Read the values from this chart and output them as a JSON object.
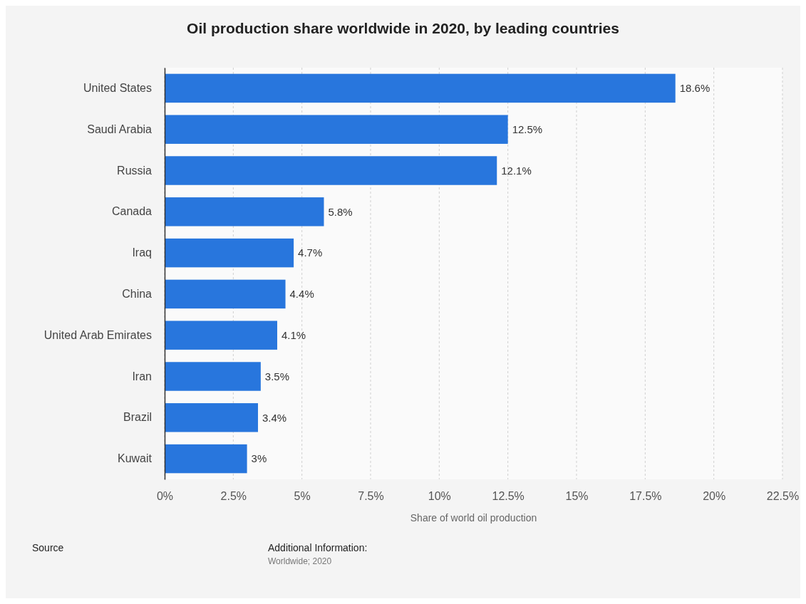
{
  "chart_data": {
    "type": "bar",
    "orientation": "horizontal",
    "title": "Oil production share worldwide in 2020, by leading countries",
    "categories": [
      "United States",
      "Saudi Arabia",
      "Russia",
      "Canada",
      "Iraq",
      "China",
      "United Arab Emirates",
      "Iran",
      "Brazil",
      "Kuwait"
    ],
    "values": [
      18.6,
      12.5,
      12.1,
      5.8,
      4.7,
      4.4,
      4.1,
      3.5,
      3.4,
      3
    ],
    "value_labels": [
      "18.6%",
      "12.5%",
      "12.1%",
      "5.8%",
      "4.7%",
      "4.4%",
      "4.1%",
      "3.5%",
      "3.4%",
      "3%"
    ],
    "color": "#2876dd",
    "xlabel": "Share of world oil production",
    "xlim": [
      0,
      22.5
    ],
    "xticks": [
      {
        "value": 0,
        "label": "0%"
      },
      {
        "value": 2.5,
        "label": "2.5%"
      },
      {
        "value": 5,
        "label": "5%"
      },
      {
        "value": 7.5,
        "label": "7.5%"
      },
      {
        "value": 10,
        "label": "10%"
      },
      {
        "value": 12.5,
        "label": "12.5%"
      },
      {
        "value": 15,
        "label": "15%"
      },
      {
        "value": 17.5,
        "label": "17.5%"
      },
      {
        "value": 20,
        "label": "20%"
      },
      {
        "value": 22.5,
        "label": "22.5%"
      }
    ],
    "grid": "x",
    "annotations": [
      "Source",
      "Additional Information:",
      "Worldwide; 2020"
    ]
  }
}
